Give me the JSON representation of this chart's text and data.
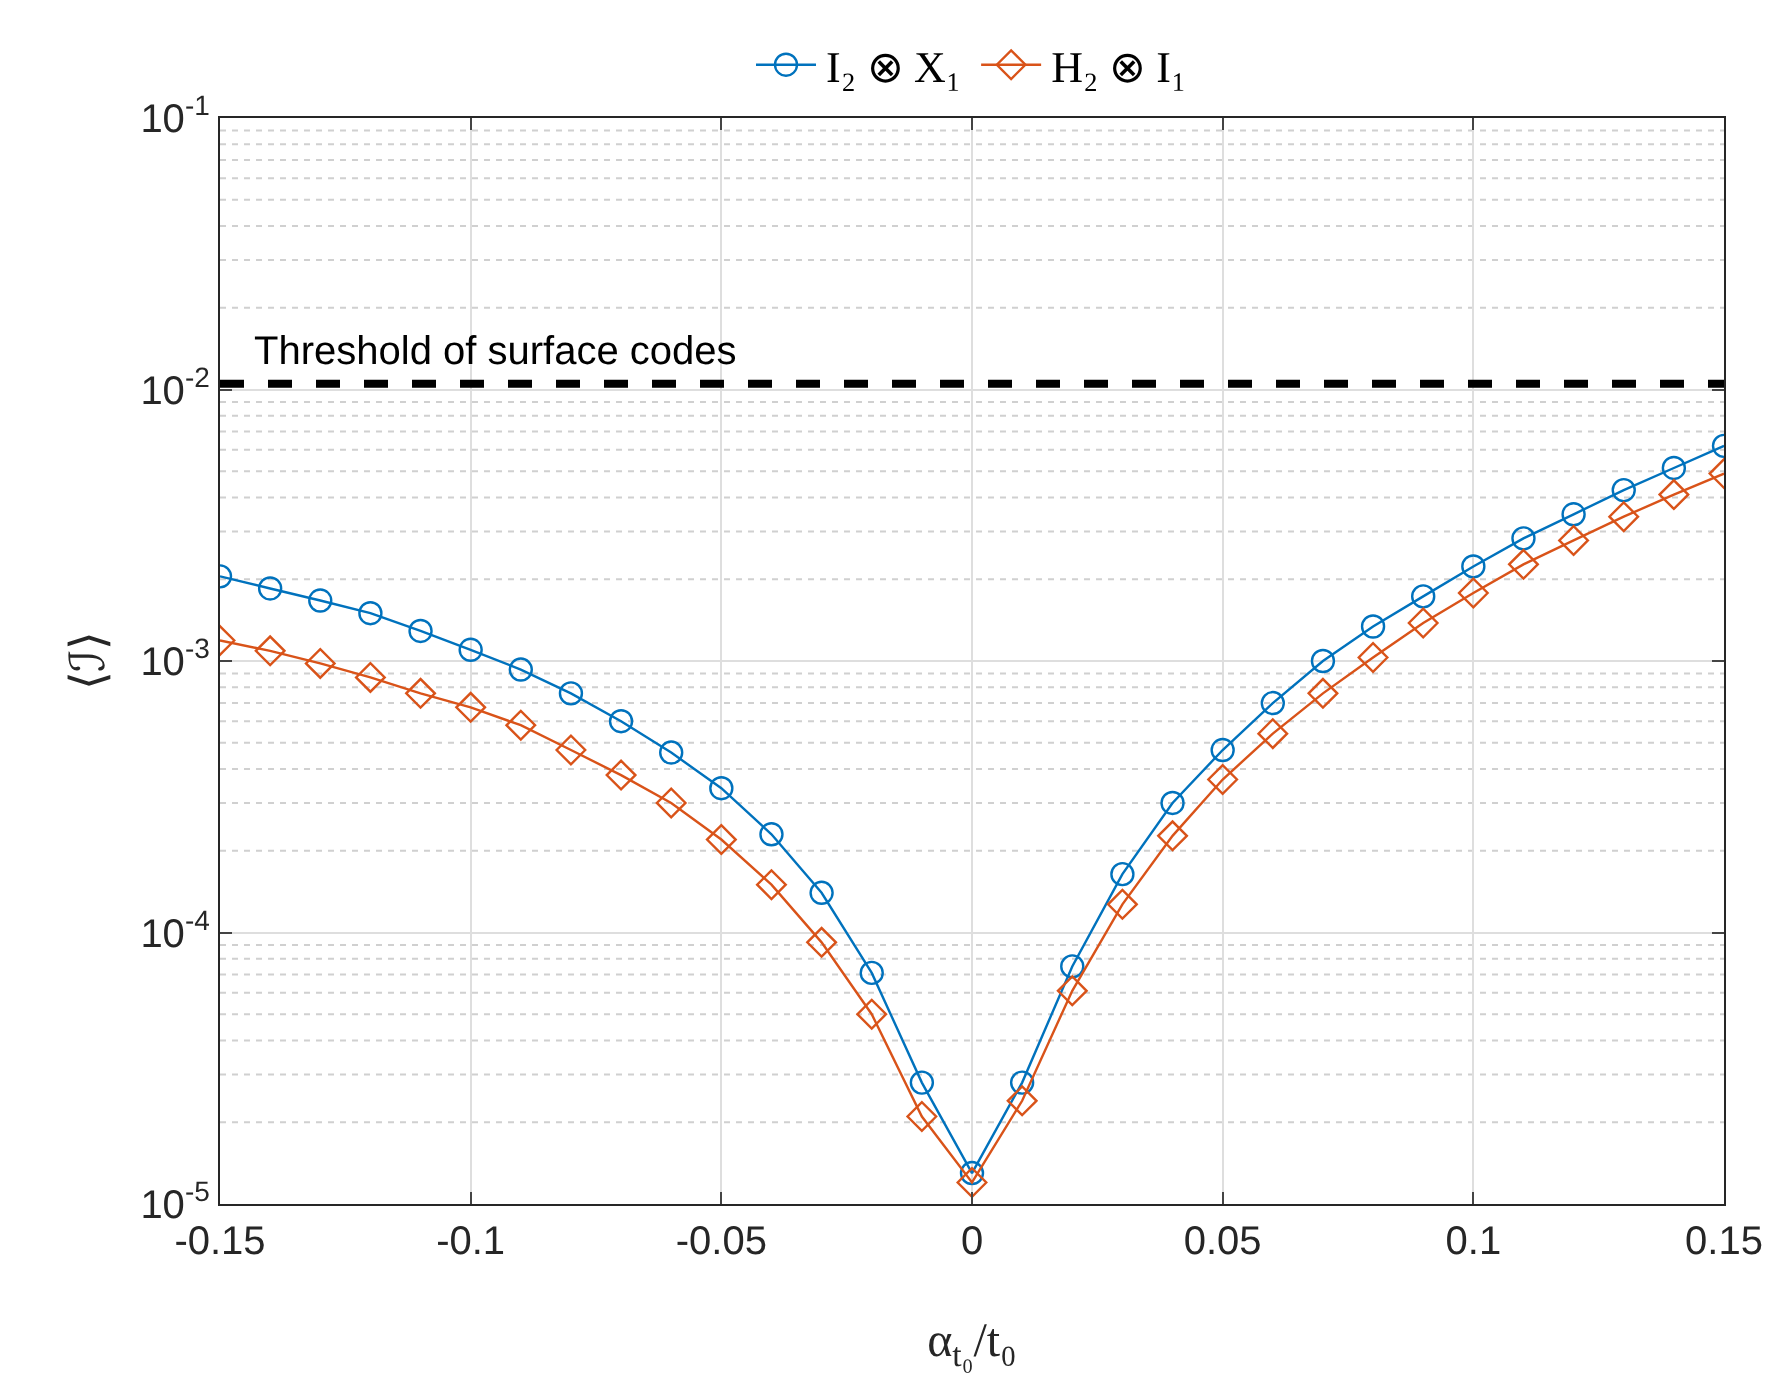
{
  "chart_data": {
    "type": "line",
    "xlabel": "α$_{t₀}$/t₀",
    "ylabel": "⟨ℐ⟩",
    "log": "y",
    "grid": true,
    "legend": "top",
    "x": [
      -0.15,
      -0.14,
      -0.13,
      -0.12,
      -0.11,
      -0.1,
      -0.09,
      -0.08,
      -0.07,
      -0.06,
      -0.05,
      -0.04,
      -0.03,
      -0.02,
      -0.01,
      0,
      0.01,
      0.02,
      0.03,
      0.04,
      0.05,
      0.06,
      0.07,
      0.08,
      0.09,
      0.1,
      0.11,
      0.12,
      0.13,
      0.14,
      0.15
    ],
    "xlim": [
      -0.15,
      0.15
    ],
    "xticks": [
      -0.15,
      -0.1,
      -0.05,
      0,
      0.05,
      0.1,
      0.15
    ],
    "ylim": [
      1e-05,
      0.1
    ],
    "yticks": [
      {
        "value": 1e-05,
        "label": "10$^{-5}$"
      },
      {
        "value": 0.0001,
        "label": "10$^{-4}$"
      },
      {
        "value": 0.001,
        "label": "10$^{-3}$"
      },
      {
        "value": 0.01,
        "label": "10$^{-2}$"
      },
      {
        "value": 0.1,
        "label": "10$^{-1}$"
      }
    ],
    "series": [
      {
        "name": "I₂ ⊗ X₁",
        "color": "#0072bd",
        "marker": "circle",
        "values": [
          0.00205,
          0.00185,
          0.00167,
          0.0015,
          0.00129,
          0.0011,
          0.00093,
          0.00076,
          0.0006,
          0.00046,
          0.00034,
          0.00023,
          0.00014,
          7.1e-05,
          2.8e-05,
          1.3e-05,
          2.8e-05,
          7.5e-05,
          0.000164,
          0.0003,
          0.00047,
          0.0007,
          0.001,
          0.00134,
          0.00173,
          0.00223,
          0.00283,
          0.00347,
          0.00426,
          0.00514,
          0.0062
        ]
      },
      {
        "name": "H₂ ⊗ I₁",
        "color": "#d95319",
        "marker": "diamond",
        "values": [
          0.00119,
          0.00109,
          0.00098,
          0.00087,
          0.00076,
          0.000675,
          0.00058,
          0.00047,
          0.00038,
          0.0003,
          0.00022,
          0.00015,
          9.2e-05,
          5e-05,
          2.1e-05,
          1.2e-05,
          2.4e-05,
          6.1e-05,
          0.000127,
          0.000227,
          0.000366,
          0.00054,
          0.00076,
          0.00103,
          0.00138,
          0.00178,
          0.00227,
          0.00278,
          0.0034,
          0.0041,
          0.0049
        ]
      }
    ],
    "ref_lines": [
      {
        "axis": "y",
        "value": 0.0105,
        "label": "Threshold of surface codes",
        "color": "#000000",
        "line_style": "dashed"
      }
    ]
  }
}
